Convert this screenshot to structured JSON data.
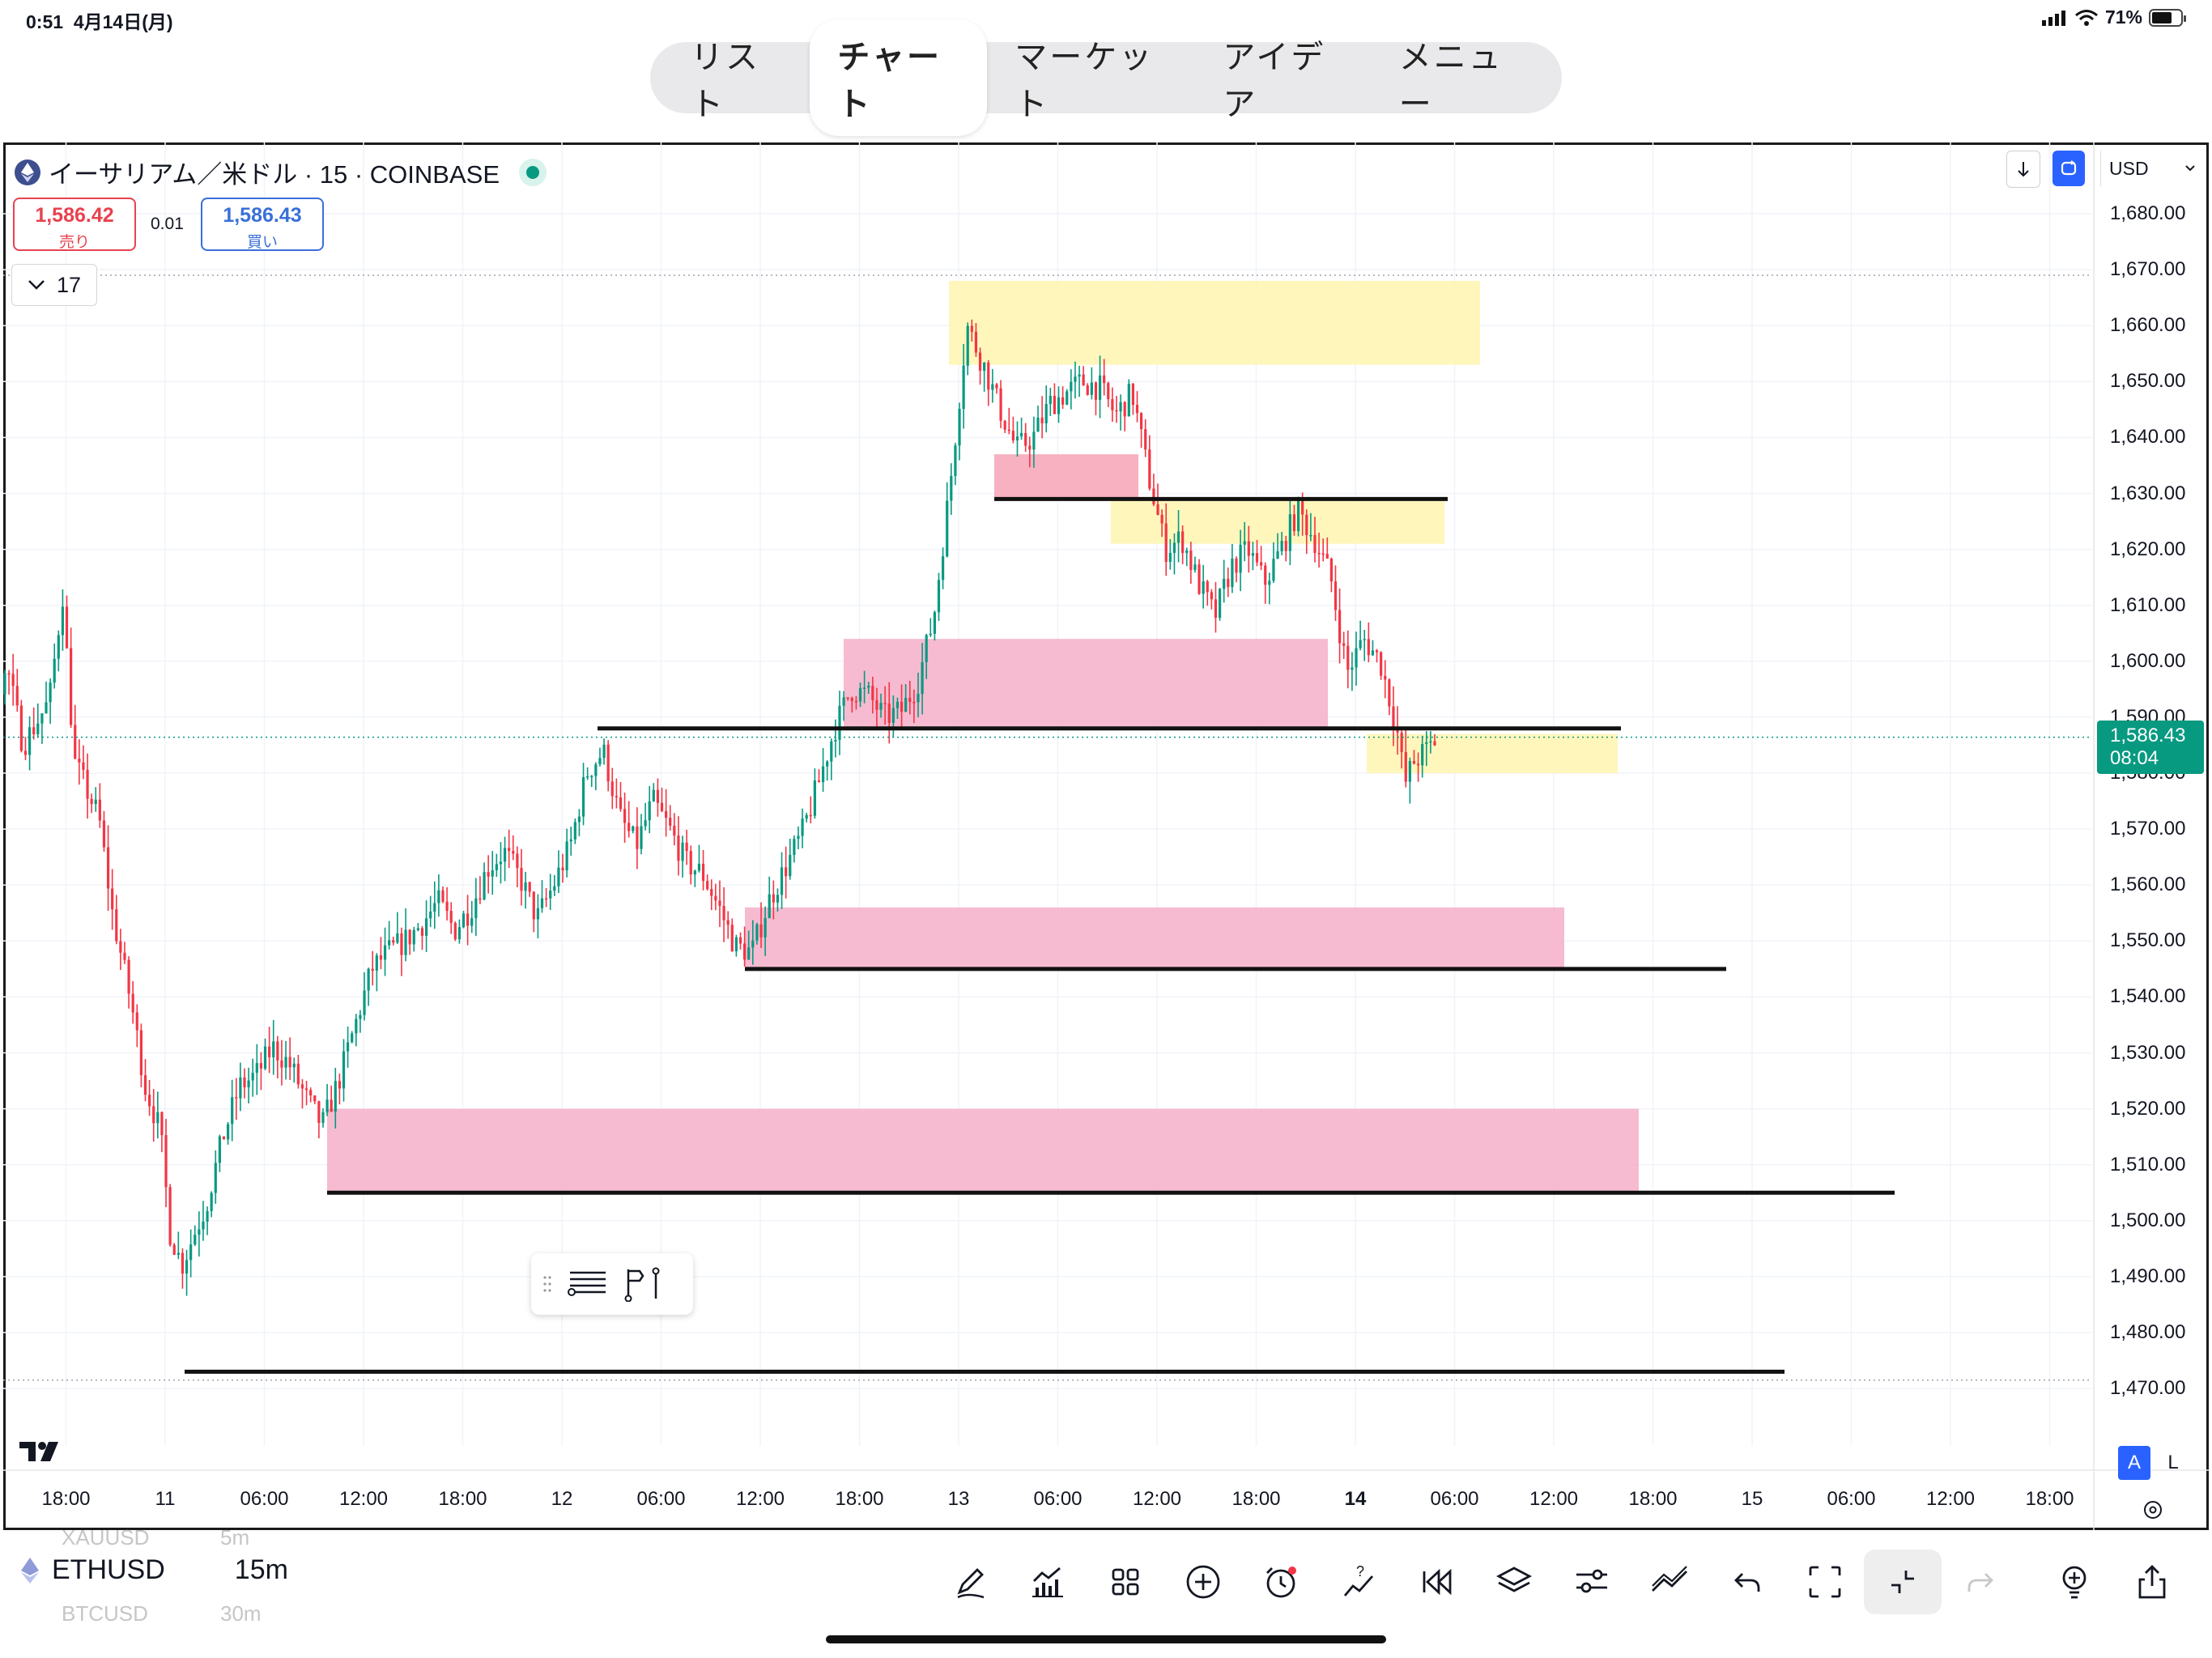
{
  "status_bar": {
    "time": "0:51",
    "date": "4月14日(月)",
    "battery": "71%",
    "battery_level": 0.71
  },
  "nav": {
    "tabs": [
      "リスト",
      "チャート",
      "マーケット",
      "アイデア",
      "メニュー"
    ],
    "active": "チャート"
  },
  "legend": {
    "symbol_title": "イーサリアム／米ドル · 15 · COINBASE",
    "sell_price": "1,586.42",
    "sell_label": "売り",
    "spread": "0.01",
    "buy_price": "1,586.43",
    "buy_label": "買い",
    "indicator_count": "17"
  },
  "controls": {
    "currency": "USD"
  },
  "price_axis": {
    "labels": [
      "1,680.00",
      "1,670.00",
      "1,660.00",
      "1,650.00",
      "1,640.00",
      "1,630.00",
      "1,620.00",
      "1,610.00",
      "1,600.00",
      "1,590.00",
      "1,580.00",
      "1,570.00",
      "1,560.00",
      "1,550.00",
      "1,540.00",
      "1,530.00",
      "1,520.00",
      "1,510.00",
      "1,500.00",
      "1,490.00",
      "1,480.00",
      "1,470.00"
    ],
    "last_price": "1,586.43",
    "countdown": "08:04"
  },
  "time_axis": {
    "labels": [
      {
        "t": "18:00",
        "bold": false
      },
      {
        "t": "11",
        "bold": false
      },
      {
        "t": "06:00",
        "bold": false
      },
      {
        "t": "12:00",
        "bold": false
      },
      {
        "t": "18:00",
        "bold": false
      },
      {
        "t": "12",
        "bold": false
      },
      {
        "t": "06:00",
        "bold": false
      },
      {
        "t": "12:00",
        "bold": false
      },
      {
        "t": "18:00",
        "bold": false
      },
      {
        "t": "13",
        "bold": false
      },
      {
        "t": "06:00",
        "bold": false
      },
      {
        "t": "12:00",
        "bold": false
      },
      {
        "t": "18:00",
        "bold": false
      },
      {
        "t": "14",
        "bold": true
      },
      {
        "t": "06:00",
        "bold": false
      },
      {
        "t": "12:00",
        "bold": false
      },
      {
        "t": "18:00",
        "bold": false
      },
      {
        "t": "15",
        "bold": false
      },
      {
        "t": "06:00",
        "bold": false
      },
      {
        "t": "12:00",
        "bold": false
      },
      {
        "t": "18:00",
        "bold": false
      }
    ]
  },
  "scale_buttons": {
    "auto": "A",
    "log": "L"
  },
  "bottom_bar": {
    "symbol": "ETHUSD",
    "interval": "15m",
    "prev_symbol": "XAUUSD",
    "prev_interval": "5m",
    "next_symbol": "BTCUSD",
    "next_interval": "30m"
  },
  "colors": {
    "up": "#089981",
    "down": "#f23645",
    "accent": "#2962ff",
    "zone_red": "#f5a6c0",
    "zone_yellow": "#fff5b5"
  },
  "chart_data": {
    "type": "candlestick",
    "price_range": [
      1465,
      1685
    ],
    "zones": [
      {
        "color": "yellow",
        "from": "13 00:00",
        "to": "13 ~20:00",
        "low": 1653,
        "high": 1668
      },
      {
        "color": "red",
        "from": "13 ~06:00",
        "to": "13 ~12:00",
        "low": 1629,
        "high": 1637
      },
      {
        "color": "yellow",
        "from": "13 ~12:00",
        "to": "14 ~04:00",
        "low": 1621,
        "high": 1629
      },
      {
        "color": "red",
        "from": "12 ~18:00",
        "to": "13 ~23:00",
        "low": 1588,
        "high": 1604
      },
      {
        "color": "yellow",
        "from": "14 ~00:00",
        "to": "14 ~18:00",
        "low": 1580,
        "high": 1587
      },
      {
        "color": "red",
        "from": "12 ~12:00",
        "to": "14 ~12:00",
        "low": 1545,
        "high": 1556
      },
      {
        "color": "red",
        "from": "11 ~10:00",
        "to": "14 ~19:00",
        "low": 1505,
        "high": 1520
      }
    ],
    "levels": [
      {
        "price": 1629,
        "from": "13 ~06:00",
        "to": "14 ~06:00"
      },
      {
        "price": 1588,
        "from": "12 ~03:00",
        "to": "14 ~18:00"
      },
      {
        "price": 1545,
        "from": "12 ~12:00",
        "to": "15 ~00:00"
      },
      {
        "price": 1505,
        "from": "11 ~10:00",
        "to": "15 ~10:00"
      },
      {
        "price": 1473,
        "from": "11 ~02:00",
        "to": "15 ~02:00"
      }
    ],
    "current_price": 1586.43
  }
}
